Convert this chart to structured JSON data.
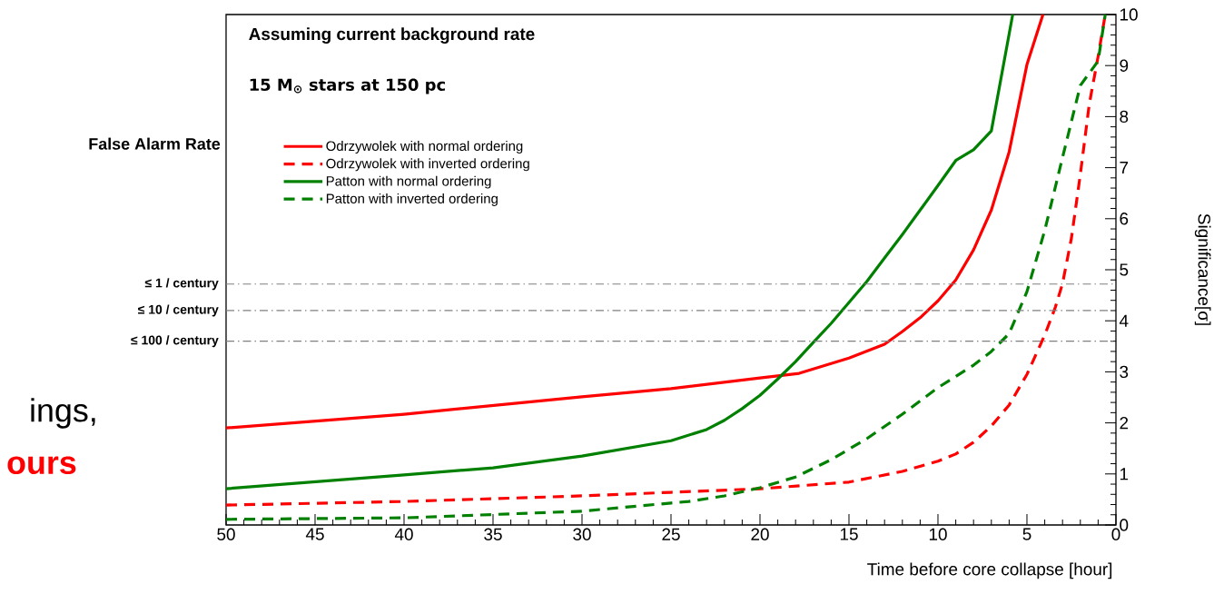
{
  "chart_data": {
    "type": "line",
    "title": "Assuming current background rate",
    "subtitle": "15 M$_{⊙}$ stars at 150 pc",
    "xlabel": "Time before core collapse [hour]",
    "ylabel": "Significance[σ]",
    "annotations": [
      "False Alarm Rate",
      "ings,",
      "ours"
    ],
    "xlim": [
      50,
      0
    ],
    "ylim": [
      0,
      10
    ],
    "xticks": [
      50,
      45,
      40,
      35,
      30,
      25,
      20,
      15,
      10,
      5,
      0
    ],
    "yticks": [
      0,
      1,
      2,
      3,
      4,
      5,
      6,
      7,
      8,
      9,
      10
    ],
    "legend": "top left",
    "ref_lines": [
      {
        "axis": "y",
        "value": 4.72,
        "label": "≤ 1 / century",
        "color": "#808080",
        "line_style": "dashdot"
      },
      {
        "axis": "y",
        "value": 4.2,
        "label": "≤ 10 / century",
        "color": "#808080",
        "line_style": "dashdot"
      },
      {
        "axis": "y",
        "value": 3.6,
        "label": "≤ 100 / century",
        "color": "#808080",
        "line_style": "dashdot"
      }
    ],
    "series": [
      {
        "name": "Odrzywolek with normal ordering",
        "color": "#ff0000",
        "line_style": "solid",
        "x": [
          50,
          40,
          30,
          25,
          20,
          17.8,
          15,
          13,
          12,
          11,
          10,
          9,
          8,
          7,
          6,
          5,
          4.1
        ],
        "values": [
          1.9,
          2.17,
          2.51,
          2.67,
          2.88,
          2.97,
          3.27,
          3.54,
          3.79,
          4.06,
          4.39,
          4.8,
          5.39,
          6.17,
          7.31,
          9.02,
          10
        ]
      },
      {
        "name": "Odrzywolek with inverted ordering",
        "color": "#ff0000",
        "line_style": "dashed",
        "x": [
          50,
          40,
          30,
          25,
          20,
          15,
          12,
          10,
          9,
          8,
          7,
          6,
          5,
          4,
          3.4,
          3,
          2.5,
          2,
          1.5,
          1,
          0.6
        ],
        "values": [
          0.39,
          0.46,
          0.57,
          0.64,
          0.71,
          0.84,
          1.05,
          1.25,
          1.39,
          1.62,
          1.94,
          2.35,
          2.95,
          3.72,
          4.27,
          4.73,
          5.62,
          6.87,
          8.24,
          9.18,
          10
        ]
      },
      {
        "name": "Patton with normal ordering",
        "color": "#008000",
        "line_style": "solid",
        "x": [
          50,
          40,
          35,
          30,
          25,
          23,
          22,
          21,
          20,
          19,
          18,
          17,
          16,
          15,
          14,
          13,
          12,
          11,
          10,
          9,
          8,
          7,
          5.8
        ],
        "values": [
          0.71,
          0.98,
          1.12,
          1.35,
          1.65,
          1.87,
          2.05,
          2.28,
          2.54,
          2.86,
          3.2,
          3.58,
          3.95,
          4.36,
          4.77,
          5.23,
          5.69,
          6.17,
          6.65,
          7.14,
          7.35,
          7.72,
          10
        ]
      },
      {
        "name": "Patton with inverted ordering",
        "color": "#008000",
        "line_style": "dashed",
        "x": [
          50,
          40,
          30,
          25,
          24,
          22,
          20,
          18,
          16,
          14,
          12,
          10,
          8,
          7,
          6,
          5,
          4,
          3,
          2,
          1,
          0.6
        ],
        "values": [
          0.11,
          0.14,
          0.27,
          0.43,
          0.46,
          0.57,
          0.73,
          0.94,
          1.28,
          1.69,
          2.17,
          2.69,
          3.13,
          3.4,
          3.75,
          4.57,
          5.77,
          7.2,
          8.61,
          9.09,
          10
        ]
      }
    ]
  }
}
